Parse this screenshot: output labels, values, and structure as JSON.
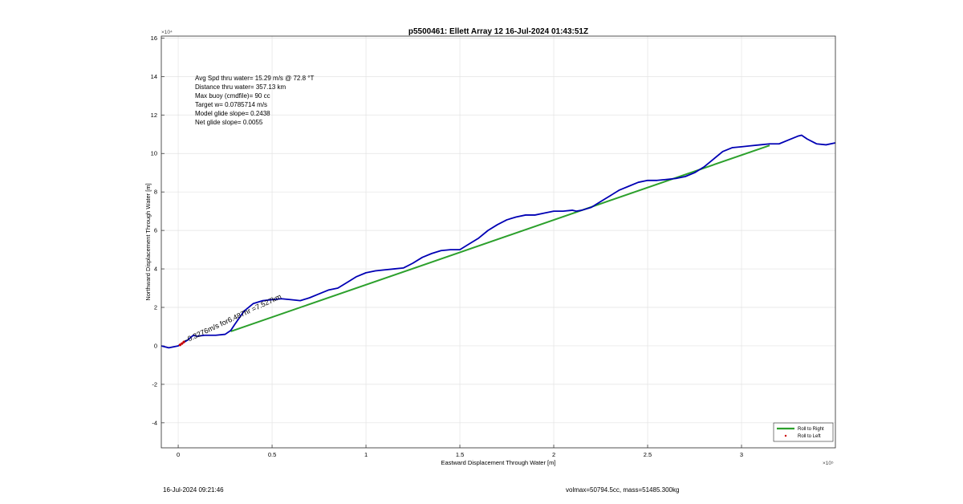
{
  "chart_data": {
    "type": "line",
    "title": "p5500461: Ellett Array 12 16-Jul-2024 01:43:51Z",
    "xlabel": "Eastward Displacement Through Water [m]",
    "ylabel": "Northward Displacement Through Water [m]",
    "x_exponent": "×10⁵",
    "y_exponent": "×10⁴",
    "xlim": [
      -0.09,
      3.5
    ],
    "ylim": [
      -5.3,
      16.1
    ],
    "x_ticks": [
      0,
      0.5,
      1,
      1.5,
      2,
      2.5,
      3
    ],
    "x_tick_labels": [
      "0",
      "0.5",
      "1",
      "1.5",
      "2",
      "2.5",
      "3"
    ],
    "y_ticks": [
      -4,
      -2,
      0,
      2,
      4,
      6,
      8,
      10,
      12,
      14,
      16
    ],
    "y_tick_labels": [
      "-4",
      "-2",
      "0",
      "2",
      "4",
      "6",
      "8",
      "10",
      "12",
      "14",
      "16"
    ],
    "grid": true,
    "legend_position": "bottom-right",
    "series": [
      {
        "name": "Roll to Right",
        "color": "#2ca02c",
        "x": [
          0.28,
          3.15
        ],
        "y": [
          0.75,
          10.42
        ]
      },
      {
        "name": "Roll to Left",
        "color": "#cc0000",
        "marker": "dot",
        "x": [
          0.01,
          0.02,
          0.03
        ],
        "y": [
          0.05,
          0.12,
          0.2
        ]
      },
      {
        "name": "track",
        "color": "#0000b4",
        "x": [
          -0.09,
          -0.05,
          0,
          0.05,
          0.08,
          0.1,
          0.14,
          0.2,
          0.25,
          0.28,
          0.3,
          0.35,
          0.4,
          0.45,
          0.5,
          0.55,
          0.6,
          0.65,
          0.7,
          0.75,
          0.8,
          0.85,
          0.9,
          0.95,
          1.0,
          1.05,
          1.1,
          1.15,
          1.2,
          1.25,
          1.3,
          1.35,
          1.4,
          1.45,
          1.5,
          1.55,
          1.6,
          1.65,
          1.7,
          1.75,
          1.8,
          1.85,
          1.9,
          1.95,
          2.0,
          2.05,
          2.1,
          2.12,
          2.15,
          2.2,
          2.25,
          2.3,
          2.35,
          2.4,
          2.45,
          2.5,
          2.55,
          2.6,
          2.65,
          2.7,
          2.75,
          2.8,
          2.85,
          2.9,
          2.95,
          3.0,
          3.05,
          3.1,
          3.15,
          3.2,
          3.25,
          3.3,
          3.32,
          3.35,
          3.4,
          3.45,
          3.5
        ],
        "y": [
          0.0,
          -0.1,
          0.0,
          0.3,
          0.55,
          0.5,
          0.55,
          0.55,
          0.6,
          0.8,
          1.1,
          1.8,
          2.2,
          2.35,
          2.4,
          2.45,
          2.4,
          2.35,
          2.5,
          2.7,
          2.9,
          3.0,
          3.3,
          3.6,
          3.8,
          3.9,
          3.95,
          4.0,
          4.05,
          4.3,
          4.6,
          4.8,
          4.95,
          5.0,
          5.0,
          5.3,
          5.6,
          6.0,
          6.3,
          6.55,
          6.7,
          6.8,
          6.8,
          6.9,
          7.0,
          7.0,
          7.05,
          7.0,
          7.05,
          7.2,
          7.5,
          7.8,
          8.1,
          8.3,
          8.5,
          8.6,
          8.6,
          8.65,
          8.7,
          8.8,
          9.0,
          9.3,
          9.7,
          10.1,
          10.3,
          10.35,
          10.4,
          10.45,
          10.5,
          10.5,
          10.7,
          10.9,
          10.95,
          10.75,
          10.5,
          10.45,
          10.55
        ]
      }
    ],
    "annotation": "~0.3276m/s for6.487hr =7.527km",
    "annotation_anchor": [
      0.02,
      0.05
    ]
  },
  "stats": {
    "line1": "Avg Spd thru water= 15.29 m/s @  72.8 °T",
    "line2": "Distance thru water= 357.13 km",
    "line3": "Max buoy (cmdfile)= 90 cc",
    "line4": "Target w= 0.0785714 m/s",
    "line5": "Model glide slope= 0.2438",
    "line6": "Net glide slope= 0.0055"
  },
  "legend": {
    "right_label": "Roll to Right",
    "left_label": "Roll to Left"
  },
  "footer": {
    "timestamp": "16-Jul-2024 09:21:46",
    "volmax": "volmax=50794.5cc, mass=51485.300kg"
  }
}
